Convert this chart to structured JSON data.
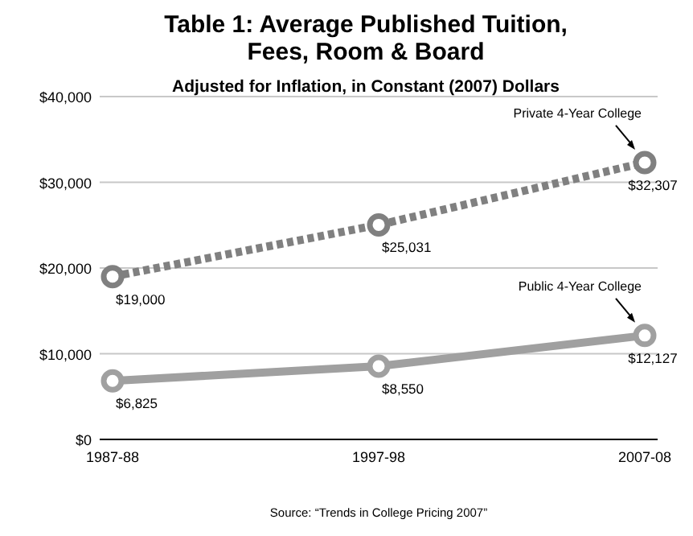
{
  "chart_data": {
    "type": "line",
    "title": "Table 1: Average Published Tuition,\nFees, Room & Board",
    "subtitle": "Adjusted for Inflation, in Constant (2007) Dollars",
    "categories": [
      "1987-88",
      "1997-98",
      "2007-08"
    ],
    "series": [
      {
        "name": "Private 4-Year College",
        "color": "#808080",
        "line_style": "dashed",
        "values": [
          19000,
          25031,
          32307
        ],
        "value_labels": [
          "$19,000",
          "$25,031",
          "$32,307"
        ]
      },
      {
        "name": "Public 4-Year College",
        "color": "#a0a0a0",
        "line_style": "solid",
        "values": [
          6825,
          8550,
          12127
        ],
        "value_labels": [
          "$6,825",
          "$8,550",
          "$12,127"
        ]
      }
    ],
    "ylim": [
      0,
      40000
    ],
    "yticks": [
      {
        "value": 0,
        "label": "$0"
      },
      {
        "value": 10000,
        "label": "$10,000"
      },
      {
        "value": 20000,
        "label": "$20,000"
      },
      {
        "value": 30000,
        "label": "$30,000"
      },
      {
        "value": 40000,
        "label": "$40,000"
      }
    ],
    "grid": "y",
    "marker": "circle",
    "annotations": [
      "Source: “Trends in College Pricing 2007”"
    ]
  }
}
